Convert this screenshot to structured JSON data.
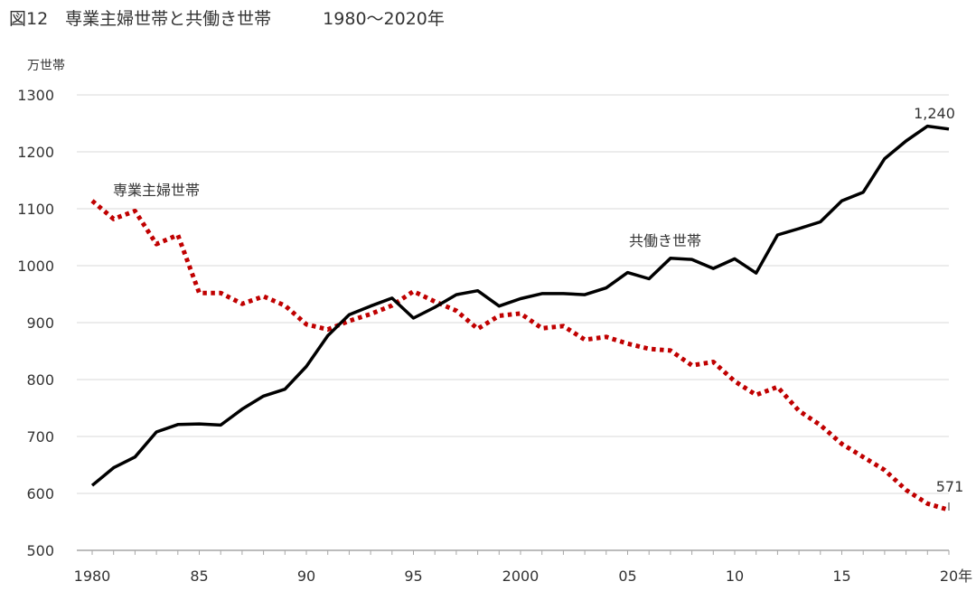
{
  "chart_data": {
    "type": "line",
    "title": "図12　専業主婦世帯と共働き世帯　　　1980～2020年",
    "ylabel": "万世帯",
    "xlabel": "",
    "ylim": [
      500,
      1300
    ],
    "yticks": [
      500,
      600,
      700,
      800,
      900,
      1000,
      1100,
      1200,
      1300
    ],
    "xlim": [
      1980,
      2020
    ],
    "xtick_values": [
      1980,
      1985,
      1990,
      1995,
      2000,
      2005,
      2010,
      2015,
      2020
    ],
    "xtick_labels": [
      "1980",
      "85",
      "90",
      "95",
      "2000",
      "05",
      "10",
      "15",
      "20年"
    ],
    "grid": true,
    "x": [
      1980,
      1981,
      1982,
      1983,
      1984,
      1985,
      1986,
      1987,
      1988,
      1989,
      1990,
      1991,
      1992,
      1993,
      1994,
      1995,
      1996,
      1997,
      1998,
      1999,
      2000,
      2001,
      2002,
      2003,
      2004,
      2005,
      2006,
      2007,
      2008,
      2009,
      2010,
      2011,
      2012,
      2013,
      2014,
      2015,
      2016,
      2017,
      2018,
      2019,
      2020
    ],
    "series": [
      {
        "name": "専業主婦世帯",
        "color": "#c00000",
        "style": "dotted",
        "values": [
          1114,
          1082,
          1096,
          1038,
          1054,
          952,
          952,
          933,
          946,
          930,
          897,
          888,
          903,
          915,
          930,
          955,
          937,
          921,
          889,
          912,
          916,
          890,
          894,
          870,
          875,
          863,
          854,
          851,
          825,
          831,
          797,
          773,
          787,
          745,
          720,
          687,
          664,
          641,
          606,
          582,
          571
        ]
      },
      {
        "name": "共働き世帯",
        "color": "#000000",
        "style": "solid",
        "values": [
          614,
          645,
          664,
          708,
          721,
          722,
          720,
          748,
          771,
          783,
          823,
          877,
          914,
          929,
          943,
          908,
          927,
          949,
          956,
          929,
          942,
          951,
          951,
          949,
          961,
          988,
          977,
          1013,
          1011,
          995,
          1012,
          987,
          1054,
          1065,
          1077,
          1114,
          1129,
          1188,
          1219,
          1245,
          1240
        ]
      }
    ],
    "annotations": [
      {
        "text": "専業主婦世帯",
        "series": 0
      },
      {
        "text": "共働き世帯",
        "series": 1
      },
      {
        "text": "1,240",
        "series": 1,
        "x": 2020
      },
      {
        "text": "571",
        "series": 0,
        "x": 2020
      }
    ]
  }
}
